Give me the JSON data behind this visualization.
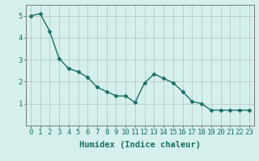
{
  "x": [
    0,
    1,
    2,
    3,
    4,
    5,
    6,
    7,
    8,
    9,
    10,
    11,
    12,
    13,
    14,
    15,
    16,
    17,
    18,
    19,
    20,
    21,
    22,
    23
  ],
  "y": [
    5.0,
    5.1,
    4.3,
    3.05,
    2.6,
    2.45,
    2.2,
    1.75,
    1.55,
    1.35,
    1.35,
    1.05,
    1.95,
    2.35,
    2.15,
    1.95,
    1.55,
    1.1,
    1.0,
    0.7,
    0.7,
    0.7,
    0.7,
    0.7
  ],
  "line_color": "#1a6e65",
  "marker": "D",
  "marker_size": 2.5,
  "bg_color": "#d5f0ec",
  "grid_color": "#b8c8c4",
  "xlabel": "Humidex (Indice chaleur)",
  "xlim": [
    -0.5,
    23.5
  ],
  "ylim": [
    0,
    5.5
  ],
  "yticks": [
    1,
    2,
    3,
    4,
    5
  ],
  "xticks": [
    0,
    1,
    2,
    3,
    4,
    5,
    6,
    7,
    8,
    9,
    10,
    11,
    12,
    13,
    14,
    15,
    16,
    17,
    18,
    19,
    20,
    21,
    22,
    23
  ],
  "xtick_labels": [
    "0",
    "1",
    "2",
    "3",
    "4",
    "5",
    "6",
    "7",
    "8",
    "9",
    "10",
    "11",
    "12",
    "13",
    "14",
    "15",
    "16",
    "17",
    "18",
    "19",
    "20",
    "21",
    "22",
    "23"
  ],
  "spine_color": "#777777",
  "tick_color": "#1a6e65",
  "font_size_xlabel": 7.5,
  "font_size_ticks": 6.5,
  "linewidth": 1.0
}
